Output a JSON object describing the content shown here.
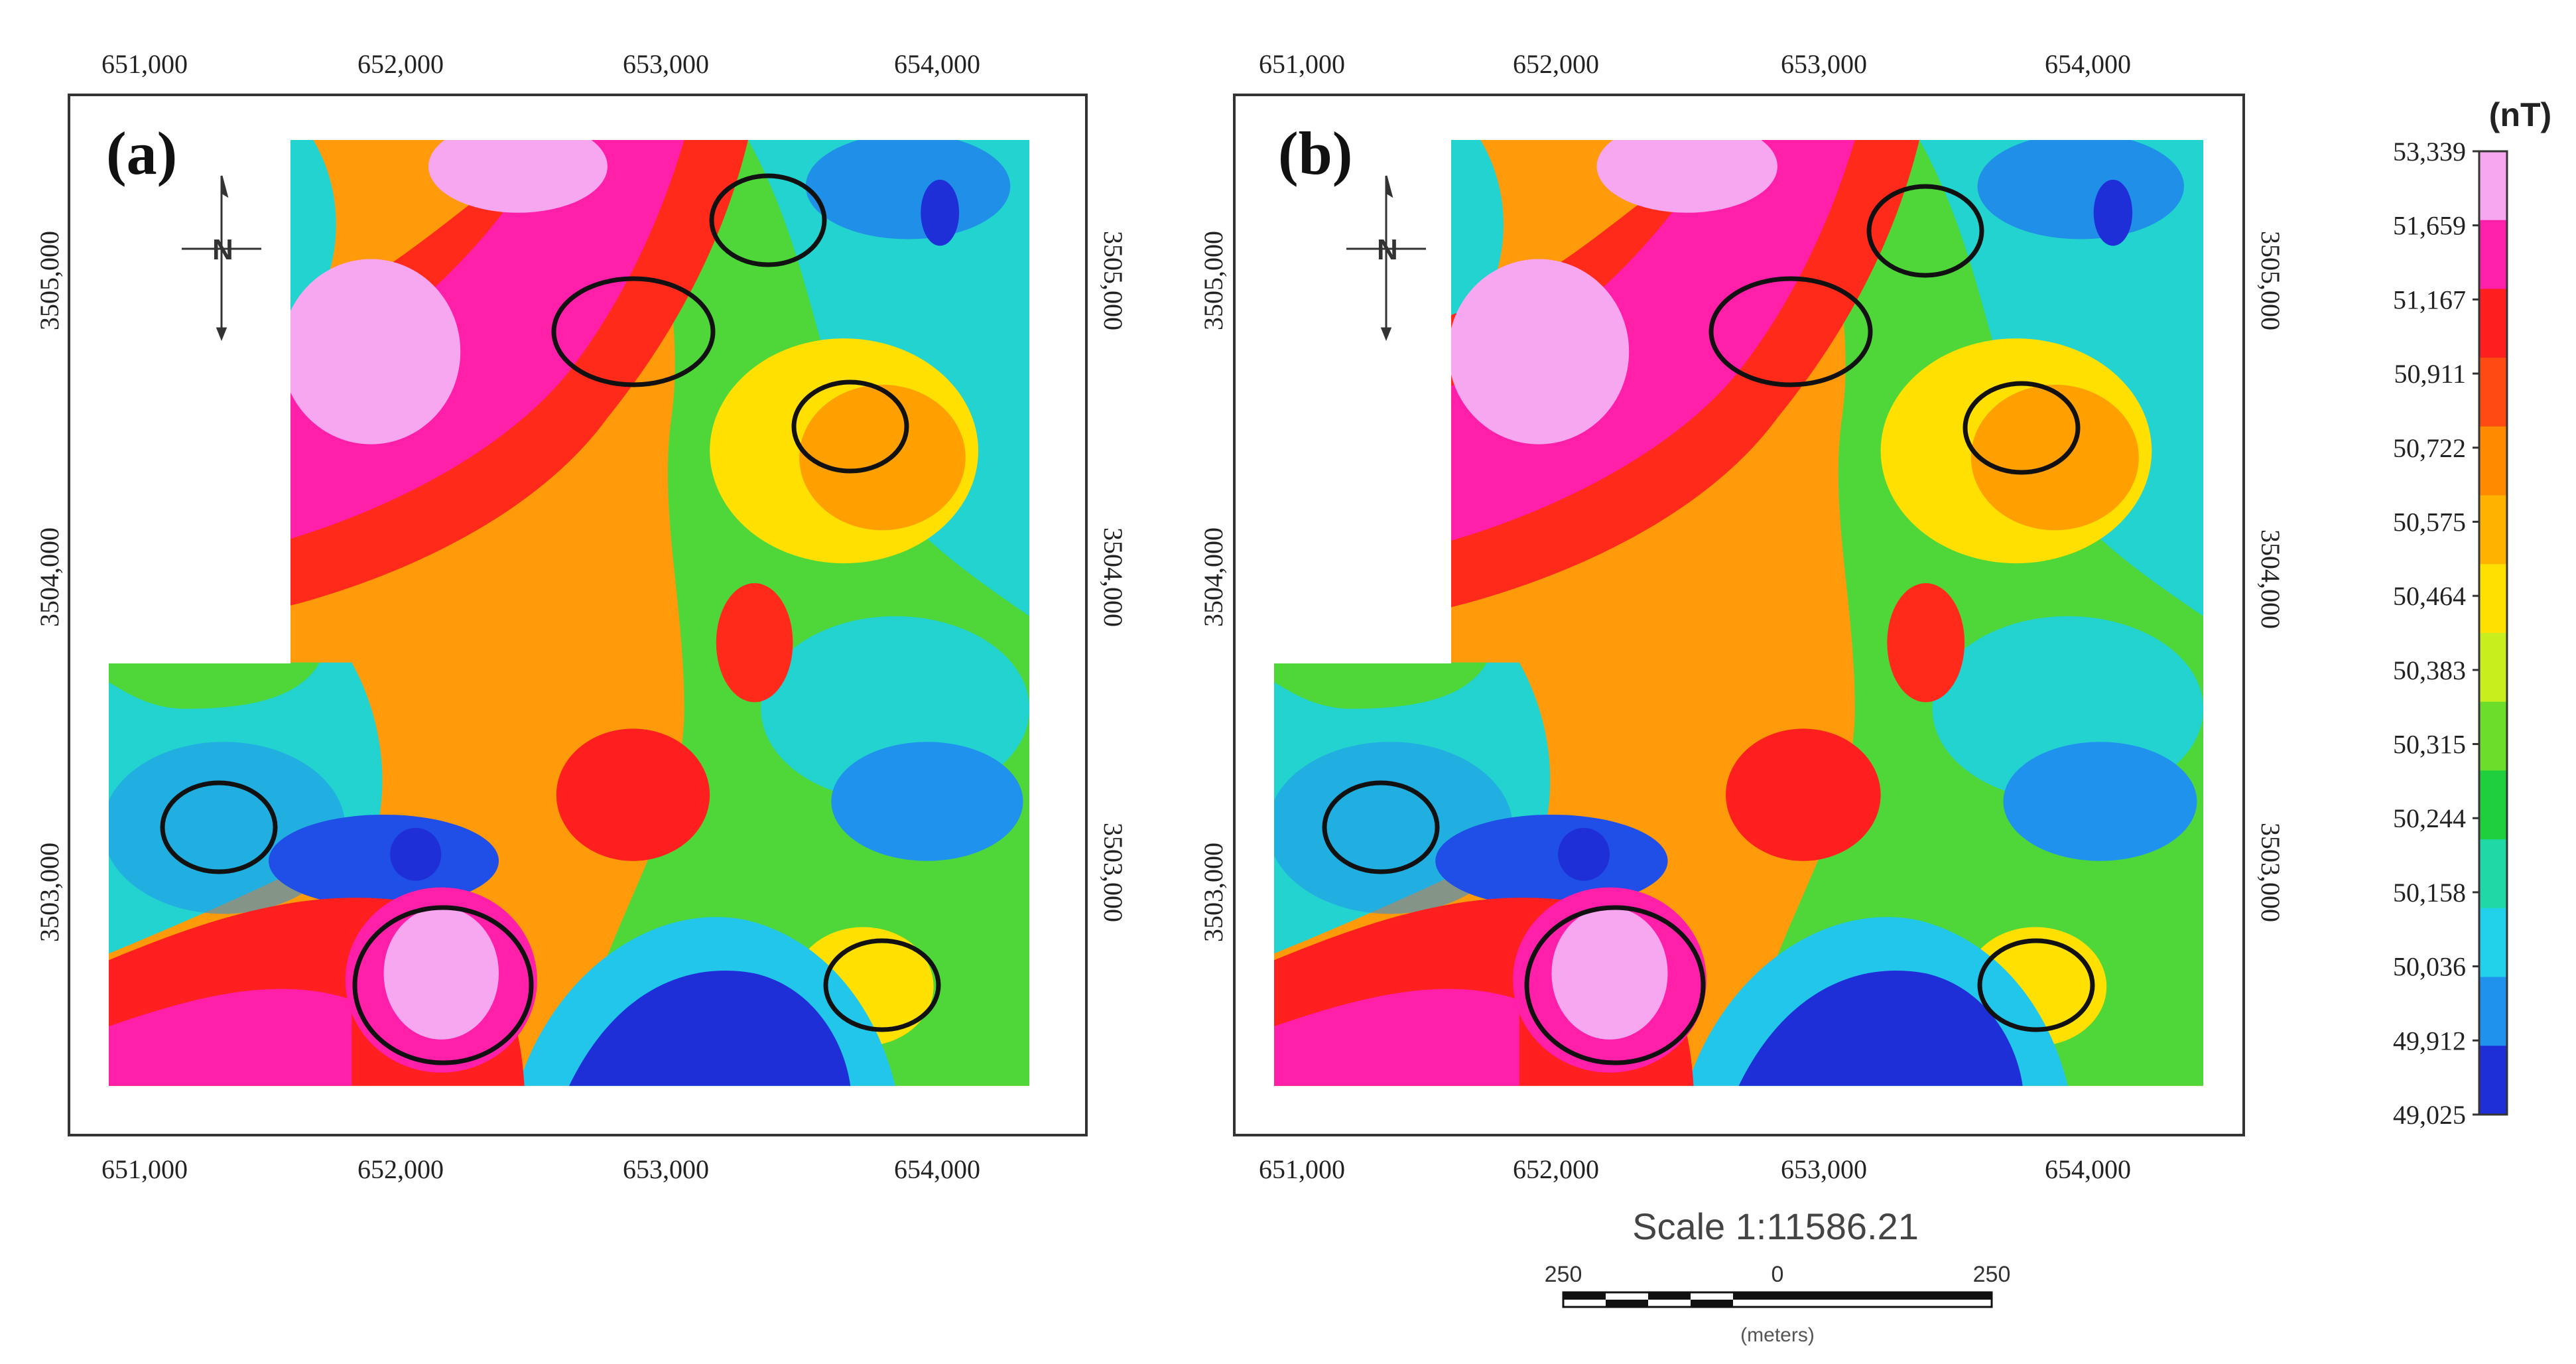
{
  "panels": [
    {
      "label": "(a)",
      "x_ticks": [
        "651,000",
        "652,000",
        "653,000",
        "654,000"
      ],
      "y_ticks": [
        "3505,000",
        "3504,000",
        "3503,000"
      ]
    },
    {
      "label": "(b)",
      "x_ticks": [
        "651,000",
        "652,000",
        "653,000",
        "654,000"
      ],
      "y_ticks": [
        "3505,000",
        "3504,000",
        "3503,000"
      ]
    }
  ],
  "legend": {
    "unit": "(nT)",
    "labels": [
      "53,339",
      "51,659",
      "51,167",
      "50,911",
      "50,722",
      "50,575",
      "50,464",
      "50,383",
      "50,315",
      "50,244",
      "50,158",
      "50,036",
      "49,912",
      "49,025"
    ],
    "colors": [
      "#f7a6f0",
      "#ff1fa8",
      "#ff1f1f",
      "#ff4a12",
      "#ff8a00",
      "#ffb300",
      "#ffe000",
      "#c8ee1e",
      "#6cdd2a",
      "#1fcf3e",
      "#1fd8a6",
      "#21d1ea",
      "#1f92ee",
      "#1f2fd8"
    ]
  },
  "north_arrow": {
    "letter": "N"
  },
  "scale": {
    "title": "Scale 1:11586.21",
    "ticks": [
      "250",
      "0",
      "250"
    ],
    "unit": "(meters)"
  }
}
